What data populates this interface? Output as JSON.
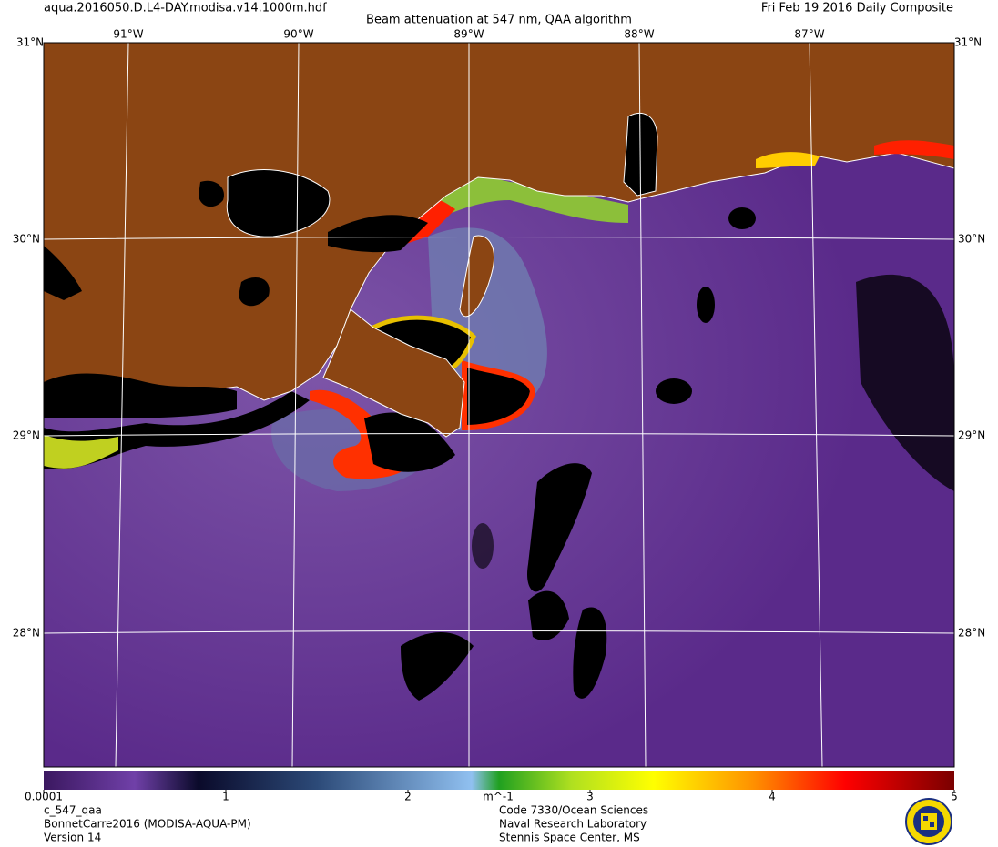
{
  "header": {
    "filename": "aqua.2016050.D.L4-DAY.modisa.v14.1000m.hdf",
    "title": "Beam attenuation at 547 nm, QAA algorithm",
    "date": "Fri Feb 19 2016 Daily Composite"
  },
  "graticule": {
    "latitudes": [
      "31°N",
      "30°N",
      "29°N",
      "28°N"
    ],
    "longitudes": [
      "91°W",
      "90°W",
      "89°W",
      "88°W",
      "87°W"
    ]
  },
  "colorbar": {
    "ticks": [
      0.0001,
      1,
      2,
      3,
      4,
      5
    ],
    "unit": "m^-1"
  },
  "footer": {
    "left": [
      "c_547_qaa",
      "BonnetCarre2016 (MODISA-AQUA-PM)",
      "Version 14"
    ],
    "right": [
      "Code 7330/Ocean Sciences",
      "Naval Research Laboratory",
      "Stennis Space Center, MS"
    ]
  }
}
